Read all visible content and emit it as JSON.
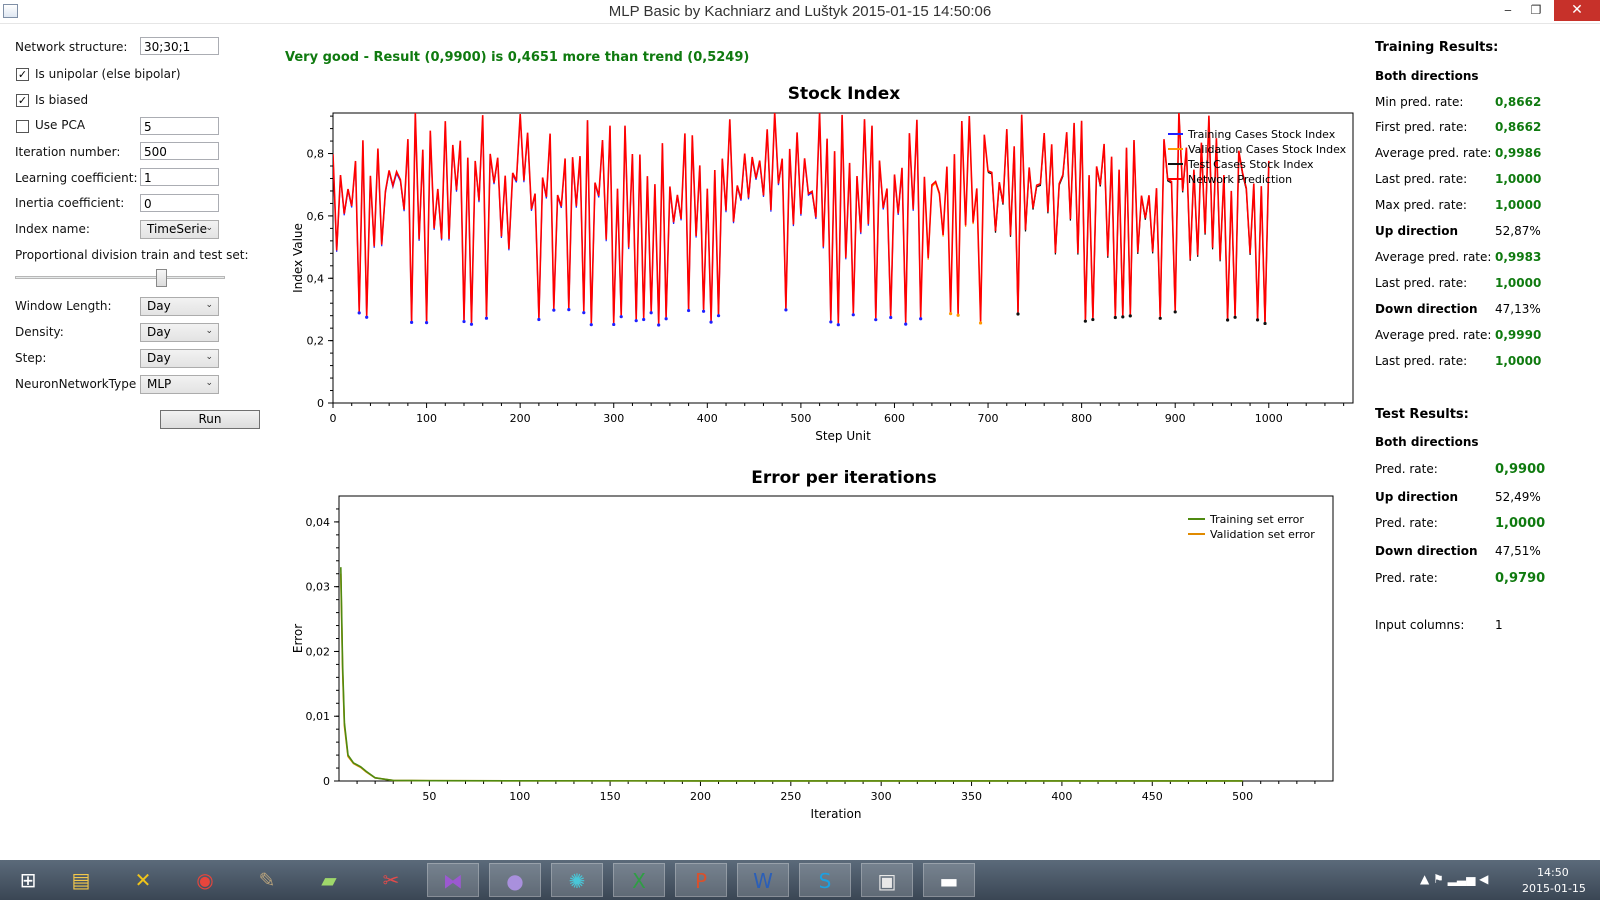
{
  "window": {
    "title": "MLP Basic by Kachniarz and Luštyk 2015-01-15 14:50:06",
    "minimize": "‒",
    "maximize": "❐",
    "close": "✕"
  },
  "form": {
    "network_structure_label": "Network structure:",
    "network_structure_value": "30;30;1",
    "unipolar_label": "Is unipolar (else bipolar)",
    "unipolar_checked": "✓",
    "biased_label": "Is biased",
    "biased_checked": "✓",
    "use_pca_label": "Use PCA",
    "use_pca_checked": "",
    "pca_value": "5",
    "iteration_label": "Iteration number:",
    "iteration_value": "500",
    "learning_label": "Learning coefficient:",
    "learning_value": "1",
    "inertia_label": "Inertia coefficient:",
    "inertia_value": "0",
    "index_name_label": "Index name:",
    "index_name_value": "TimeSerie",
    "proportion_label": "Proportional division train and test set:",
    "proportion_value": 0.67,
    "window_length_label": "Window Length:",
    "window_length_value": "Day",
    "density_label": "Density:",
    "density_value": "Day",
    "step_label": "Step:",
    "step_value": "Day",
    "nn_type_label": "NeuronNetworkType",
    "nn_type_value": "MLP",
    "run_label": "Run"
  },
  "headline": "Very good - Result (0,9900) is 0,4651 more than trend (0,5249)",
  "stock_chart": {
    "title": "Stock Index",
    "xlabel": "Step Unit",
    "ylabel": "Index Value",
    "x_ticks": [
      "0",
      "100",
      "200",
      "300",
      "400",
      "500",
      "600",
      "700",
      "800",
      "900",
      "1000"
    ],
    "y_ticks": [
      "0",
      "0,2",
      "0,4",
      "0,6",
      "0,8"
    ],
    "legend": [
      "Training Cases Stock Index",
      "Validation Cases Stock Index",
      "Test Cases Stock Index",
      "Network Prediction"
    ],
    "colors": {
      "training": "#1f1fff",
      "validation": "#ff9900",
      "test": "#111111",
      "prediction": "#ff0000"
    }
  },
  "error_chart": {
    "title": "Error per iterations",
    "xlabel": "Iteration",
    "ylabel": "Error",
    "x_ticks": [
      "50",
      "100",
      "150",
      "200",
      "250",
      "300",
      "350",
      "400",
      "450",
      "500"
    ],
    "y_ticks": [
      "0",
      "0,01",
      "0,02",
      "0,03",
      "0,04"
    ],
    "legend": [
      "Training set error",
      "Validation set error"
    ],
    "colors": {
      "training": "#4f8a10",
      "validation": "#e08a00"
    }
  },
  "chart_data": [
    {
      "type": "line",
      "title": "Stock Index",
      "xlabel": "Step Unit",
      "ylabel": "Index Value",
      "xlim": [
        0,
        1090
      ],
      "ylim": [
        0,
        0.93
      ],
      "series": [
        {
          "name": "Training Cases Stock Index",
          "x_range": [
            0,
            630
          ]
        },
        {
          "name": "Validation Cases Stock Index",
          "x_range": [
            630,
            700
          ]
        },
        {
          "name": "Test Cases Stock Index",
          "x_range": [
            700,
            1000
          ]
        },
        {
          "name": "Network Prediction",
          "x_range": [
            0,
            1000
          ]
        }
      ],
      "value_range": [
        0.25,
        0.93
      ],
      "legend": "top-right"
    },
    {
      "type": "line",
      "title": "Error per iterations",
      "xlabel": "Iteration",
      "ylabel": "Error",
      "xlim": [
        0,
        550
      ],
      "ylim": [
        0,
        0.044
      ],
      "series": [
        {
          "name": "Training set error",
          "x": [
            1,
            2,
            3,
            5,
            8,
            10,
            12,
            15,
            20,
            30,
            50,
            100,
            200,
            300,
            400,
            500
          ],
          "values": [
            0.033,
            0.018,
            0.009,
            0.004,
            0.0028,
            0.0025,
            0.0022,
            0.0015,
            0.0005,
            0.0001,
            5e-05,
            3e-05,
            2e-05,
            2e-05,
            2e-05,
            2e-05
          ]
        },
        {
          "name": "Validation set error",
          "x": [
            1,
            2,
            3,
            5,
            8,
            10,
            12,
            15,
            20,
            30,
            50,
            100,
            200,
            300,
            400,
            500
          ],
          "values": [
            0.032,
            0.017,
            0.0085,
            0.0038,
            0.0027,
            0.0024,
            0.0021,
            0.0014,
            0.0005,
            0.0001,
            5e-05,
            3e-05,
            2e-05,
            2e-05,
            2e-05,
            2e-05
          ]
        }
      ],
      "legend": "top-right"
    }
  ],
  "results": {
    "training_title": "Training Results:",
    "both_directions": "Both directions",
    "min_pred_label": "Min pred. rate:",
    "min_pred_value": "0,8662",
    "first_pred_label": "First pred. rate:",
    "first_pred_value": "0,8662",
    "avg_pred_label": "Average pred. rate:",
    "avg_pred_value": "0,9986",
    "last_pred_label": "Last pred. rate:",
    "last_pred_value": "1,0000",
    "max_pred_label": "Max pred. rate:",
    "max_pred_value": "1,0000",
    "up_direction": "Up direction",
    "up_pct": "52,87%",
    "up_avg_label": "Average pred. rate:",
    "up_avg_value": "0,9983",
    "up_last_label": "Last pred. rate:",
    "up_last_value": "1,0000",
    "down_direction": "Down direction",
    "down_pct": "47,13%",
    "down_avg_label": "Average pred. rate:",
    "down_avg_value": "0,9990",
    "down_last_label": "Last pred. rate:",
    "down_last_value": "1,0000",
    "test_title": "Test Results:",
    "test_both": "Both directions",
    "test_pred_label": "Pred. rate:",
    "test_pred_value": "0,9900",
    "test_up": "Up direction",
    "test_up_pct": "52,49%",
    "test_up_pred_label": "Pred. rate:",
    "test_up_pred_value": "1,0000",
    "test_down": "Down direction",
    "test_down_pct": "47,51%",
    "test_down_pred_label": "Pred. rate:",
    "test_down_pred_value": "0,9790",
    "input_columns_label": "Input columns:",
    "input_columns_value": "1"
  },
  "taskbar": {
    "items": [
      "start-icon",
      "file-explorer-icon",
      "tool-icon",
      "chrome-icon",
      "gimp-icon",
      "folder-icon",
      "snipping-icon",
      "visual-studio-icon",
      "github-icon",
      "app-icon",
      "excel-icon",
      "powerpoint-icon",
      "word-icon",
      "skype-icon",
      "window-app-icon",
      "console-icon"
    ],
    "time": "14:50",
    "date": "2015-01-15"
  }
}
